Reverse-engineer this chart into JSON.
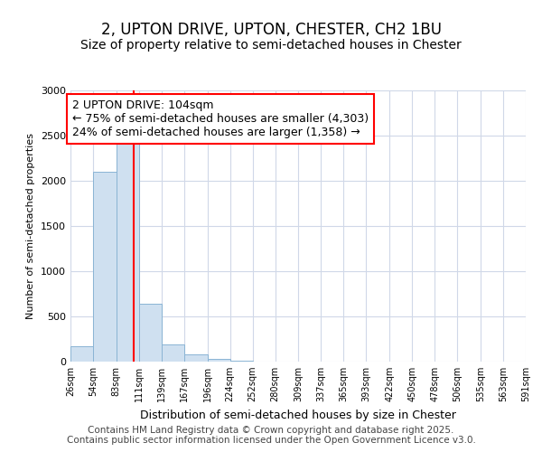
{
  "title": "2, UPTON DRIVE, UPTON, CHESTER, CH2 1BU",
  "subtitle": "Size of property relative to semi-detached houses in Chester",
  "xlabel": "Distribution of semi-detached houses by size in Chester",
  "ylabel": "Number of semi-detached properties",
  "bar_color": "#cfe0f0",
  "bar_edge_color": "#8ab4d4",
  "vline_color": "red",
  "vline_x": 104,
  "annotation_text": "2 UPTON DRIVE: 104sqm\n← 75% of semi-detached houses are smaller (4,303)\n24% of semi-detached houses are larger (1,358) →",
  "annotation_box_color": "white",
  "annotation_box_edge": "red",
  "bins": [
    26,
    54,
    83,
    111,
    139,
    167,
    196,
    224,
    252,
    280,
    309,
    337,
    365,
    393,
    422,
    450,
    478,
    506,
    535,
    563,
    591
  ],
  "bin_labels": [
    "26sqm",
    "54sqm",
    "83sqm",
    "111sqm",
    "139sqm",
    "167sqm",
    "196sqm",
    "224sqm",
    "252sqm",
    "280sqm",
    "309sqm",
    "337sqm",
    "365sqm",
    "393sqm",
    "422sqm",
    "450sqm",
    "478sqm",
    "506sqm",
    "535sqm",
    "563sqm",
    "591sqm"
  ],
  "counts": [
    170,
    2100,
    2430,
    640,
    195,
    85,
    35,
    15,
    5,
    0,
    0,
    0,
    0,
    0,
    0,
    0,
    0,
    0,
    0,
    0
  ],
  "ylim": [
    0,
    3000
  ],
  "yticks": [
    0,
    500,
    1000,
    1500,
    2000,
    2500,
    3000
  ],
  "background_color": "#ffffff",
  "grid_color": "#d0d8e8",
  "footer_text": "Contains HM Land Registry data © Crown copyright and database right 2025.\nContains public sector information licensed under the Open Government Licence v3.0.",
  "title_fontsize": 12,
  "subtitle_fontsize": 10,
  "annotation_fontsize": 9,
  "footer_fontsize": 7.5,
  "axis_label_fontsize": 9,
  "tick_fontsize": 8,
  "ylabel_fontsize": 8
}
